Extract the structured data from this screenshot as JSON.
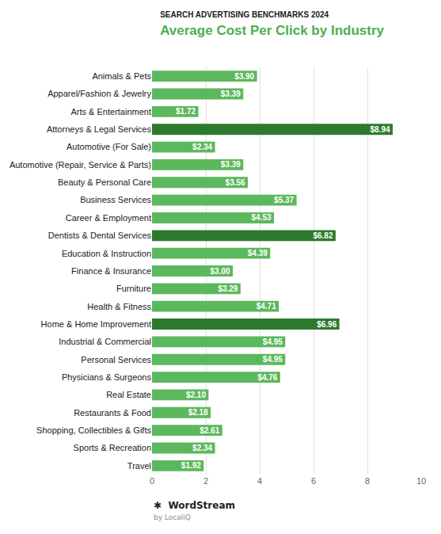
{
  "chart_data": {
    "type": "bar",
    "orientation": "horizontal",
    "title": "Average Cost Per Click by Industry",
    "subtitle": "SEARCH ADVERTISING BENCHMARKS 2024",
    "categories": [
      "Animals & Pets",
      "Apparel/Fashion & Jewelry",
      "Arts & Entertainment",
      "Attorneys & Legal Services",
      "Automotive (For Sale)",
      "Automotive (Repair, Service & Parts)",
      "Beauty & Personal Care",
      "Business Services",
      "Career & Employment",
      "Dentists & Dental Services",
      "Education & Instruction",
      "Finance & Insurance",
      "Furniture",
      "Health & Fitness",
      "Home & Home Improvement",
      "Industrial & Commercial",
      "Personal Services",
      "Physicians & Surgeons",
      "Real Estate",
      "Restaurants & Food",
      "Shopping, Collectibles & Gifts",
      "Sports & Recreation",
      "Travel"
    ],
    "values": [
      3.9,
      3.39,
      1.72,
      8.94,
      2.34,
      3.39,
      3.56,
      5.37,
      4.53,
      6.82,
      4.39,
      3.0,
      3.29,
      4.71,
      6.96,
      4.95,
      4.95,
      4.76,
      2.1,
      2.18,
      2.61,
      2.34,
      1.92
    ],
    "value_labels": [
      "$3.90",
      "$3.39",
      "$1.72",
      "$8.94",
      "$2.34",
      "$3.39",
      "$3.56",
      "$5.37",
      "$4.53",
      "$6.82",
      "$4.39",
      "$3.00",
      "$3.29",
      "$4.71",
      "$6.96",
      "$4.95",
      "$4.95",
      "$4.76",
      "$2.10",
      "$2.18",
      "$2.61",
      "$2.34",
      "$1.92"
    ],
    "data_labels": true,
    "colors": [
      "#5cb85c",
      "#5cb85c",
      "#5cb85c",
      "#2d7a2d",
      "#5cb85c",
      "#5cb85c",
      "#5cb85c",
      "#5cb85c",
      "#5cb85c",
      "#2d7a2d",
      "#5cb85c",
      "#5cb85c",
      "#5cb85c",
      "#5cb85c",
      "#2d7a2d",
      "#5cb85c",
      "#5cb85c",
      "#5cb85c",
      "#5cb85c",
      "#5cb85c",
      "#5cb85c",
      "#5cb85c",
      "#5cb85c"
    ],
    "xlim": [
      0,
      10
    ],
    "xticks": [
      0,
      2,
      4,
      6,
      8,
      10
    ],
    "grid": true,
    "annotations": [
      "✱  WordStream",
      "by LocaliQ"
    ]
  }
}
